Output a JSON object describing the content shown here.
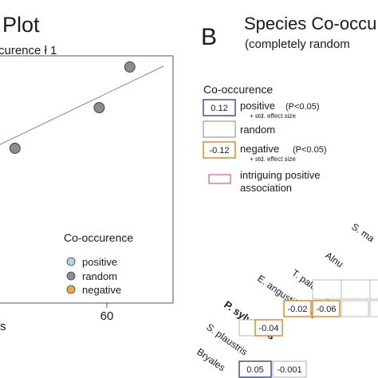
{
  "panel_a": {
    "title_fragment": "Plot",
    "subtitle_fragment": "curence ł 1",
    "xtick": "60",
    "xaxis_fragment": "s",
    "legend": {
      "title": "Co-occurence",
      "items": [
        {
          "label": "positive",
          "color": "#a9d6e5"
        },
        {
          "label": "random",
          "color": "#8c8c8c"
        },
        {
          "label": "negative",
          "color": "#f2a93b"
        }
      ]
    }
  },
  "panel_b": {
    "letter": "B",
    "title": "Species Co-occu",
    "subtitle": "(completely random",
    "legend": {
      "title": "Co-occurence",
      "positive_value": "0.12",
      "positive_label": "positive",
      "positive_p": "(P<0.05)",
      "positive_note": "+ std. effect size",
      "random_label": "random",
      "negative_value": "-0.12",
      "negative_label": "negative",
      "negative_p": "(P<0.05)",
      "negative_note": "+ std. effect size",
      "intriguing_line1": "intriguing positive",
      "intriguing_line2": "association",
      "colors": {
        "positive": "#4f5aa8",
        "random": "#9a9a9a",
        "negative": "#e8903a",
        "intriguing": "#e06060"
      }
    },
    "species": [
      "S. ma",
      "Alnu",
      "T. palustris",
      "E. angustifolium",
      "P. sylvestris",
      "S. plaustris",
      "Bryales"
    ],
    "cells": {
      "bryales_1": "0.05",
      "bryales_2": "-0.001",
      "splaustris_1": "-0.04",
      "psylvestris_1": "-0.02",
      "psylvestris_2": "-0.06"
    }
  },
  "chart_data": {
    "type": "scatter",
    "title": "Plot",
    "xlabel": "",
    "ylabel": "",
    "x_ticks": [
      60
    ],
    "series": [
      {
        "name": "random",
        "points": [
          [
            36,
            0.64
          ],
          [
            58,
            0.72
          ],
          [
            66,
            0.8
          ]
        ]
      }
    ],
    "trend_line": true,
    "legend_placement": "bottom-right"
  }
}
